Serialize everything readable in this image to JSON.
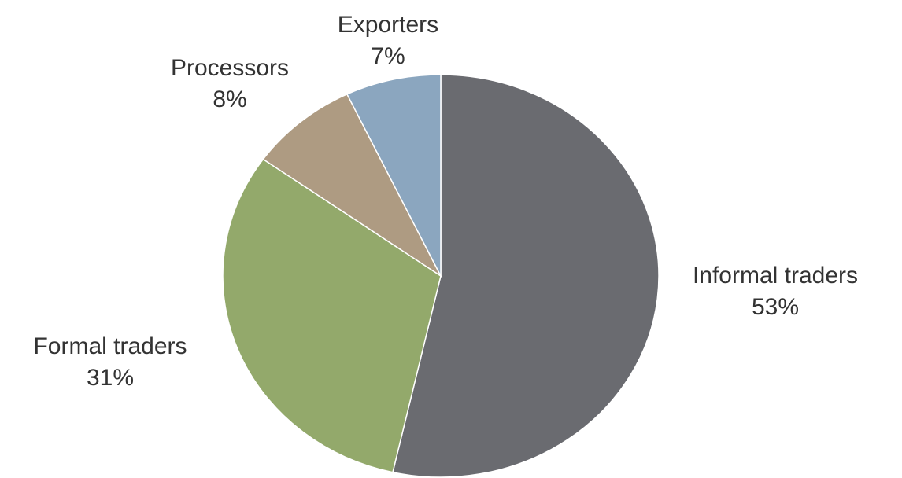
{
  "chart_data": {
    "type": "pie",
    "categories": [
      "Informal traders",
      "Formal traders",
      "Processors",
      "Exporters"
    ],
    "values": [
      53,
      31,
      8,
      7
    ],
    "value_labels": [
      "53%",
      "31%",
      "8%",
      "7%"
    ],
    "colors": [
      "#6a6b70",
      "#93a96b",
      "#ae9b82",
      "#8ba6bf"
    ]
  }
}
